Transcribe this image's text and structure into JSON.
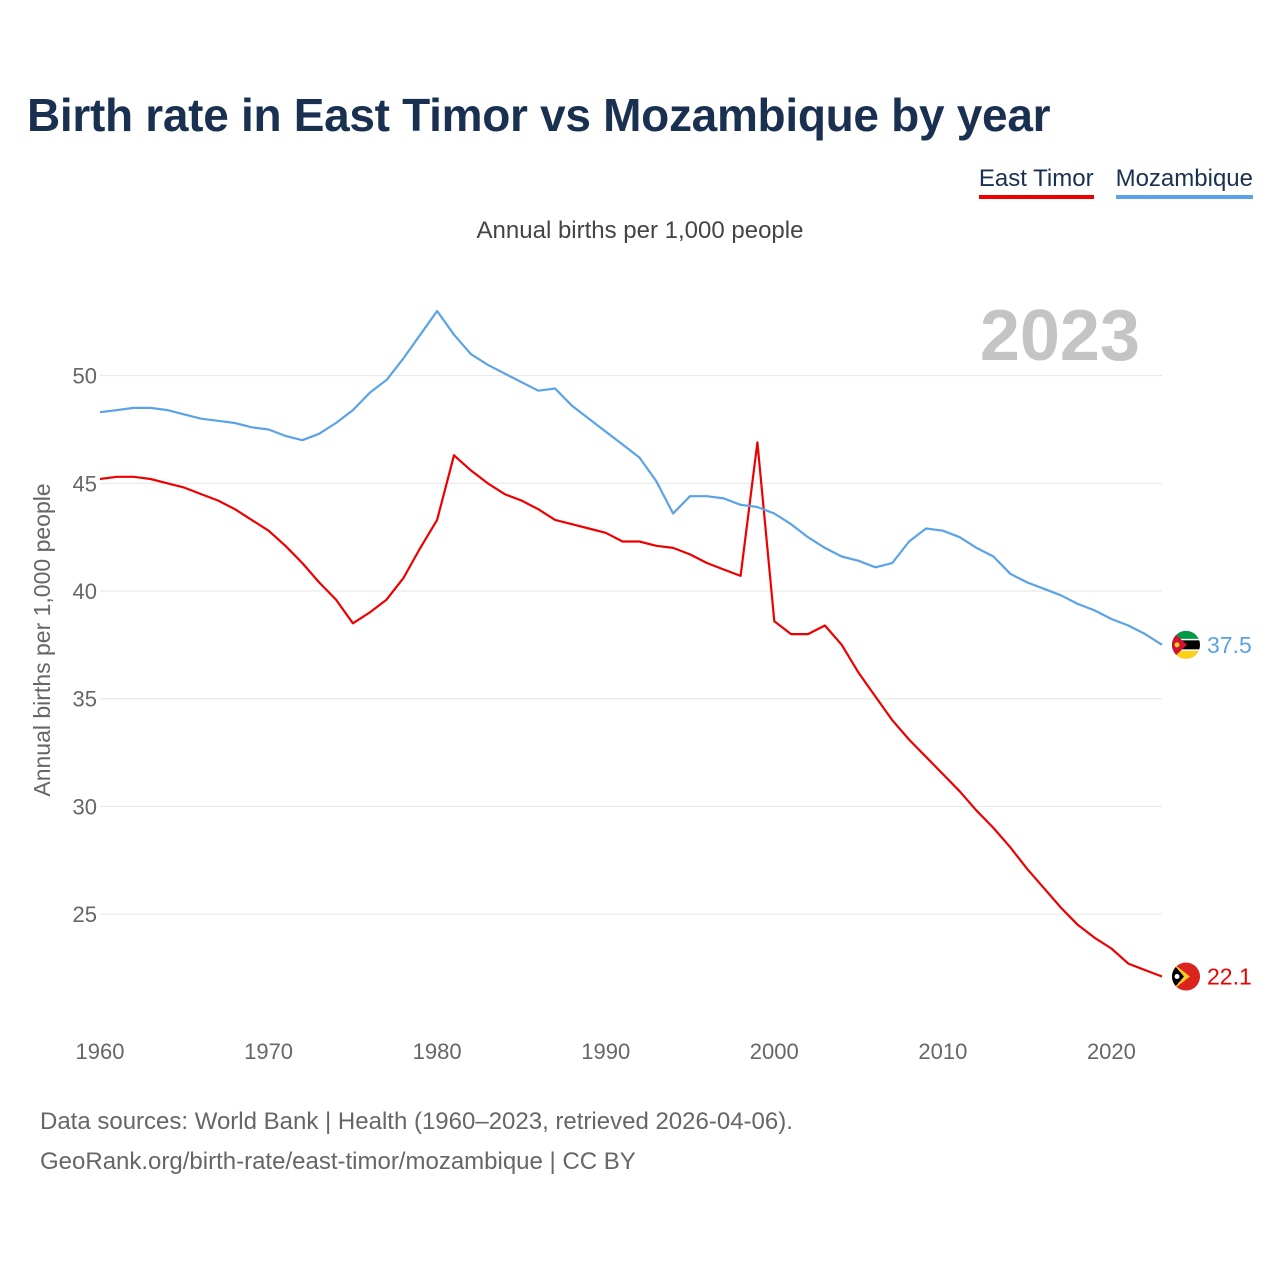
{
  "title": "Birth rate in East Timor vs Mozambique by year",
  "subtitle": "Annual births per 1,000 people",
  "legend": [
    "East Timor",
    "Mozambique"
  ],
  "year_watermark": "2023",
  "footer": {
    "line1": "Data sources: World Bank | Health (1960–2023, retrieved 2026-04-06).",
    "line2": "GeoRank.org/birth-rate/east-timor/mozambique | CC BY"
  },
  "chart_data": {
    "type": "line",
    "title": "Birth rate in East Timor vs Mozambique by year",
    "xlabel": "",
    "ylabel": "Annual births per 1,000 people",
    "xlim": [
      1960,
      2023
    ],
    "ylim": [
      20.5,
      53
    ],
    "yticks": [
      25,
      30,
      35,
      40,
      45,
      50
    ],
    "xticks": [
      1960,
      1970,
      1980,
      1990,
      2000,
      2010,
      2020
    ],
    "grid": true,
    "x": [
      1960,
      1961,
      1962,
      1963,
      1964,
      1965,
      1966,
      1967,
      1968,
      1969,
      1970,
      1971,
      1972,
      1973,
      1974,
      1975,
      1976,
      1977,
      1978,
      1979,
      1980,
      1981,
      1982,
      1983,
      1984,
      1985,
      1986,
      1987,
      1988,
      1989,
      1990,
      1991,
      1992,
      1993,
      1994,
      1995,
      1996,
      1997,
      1998,
      1999,
      2000,
      2001,
      2002,
      2003,
      2004,
      2005,
      2006,
      2007,
      2008,
      2009,
      2010,
      2011,
      2012,
      2013,
      2014,
      2015,
      2016,
      2017,
      2018,
      2019,
      2020,
      2021,
      2022,
      2023
    ],
    "series": [
      {
        "name": "East Timor",
        "color": "#ee0000",
        "end_label": "22.1",
        "values": [
          45.2,
          45.3,
          45.3,
          45.2,
          45.0,
          44.8,
          44.5,
          44.2,
          43.8,
          43.3,
          42.8,
          42.1,
          41.3,
          40.4,
          39.6,
          38.5,
          39.0,
          39.6,
          40.6,
          42.0,
          43.3,
          46.3,
          45.6,
          45.0,
          44.5,
          44.2,
          43.8,
          43.3,
          43.1,
          42.9,
          42.7,
          42.3,
          42.3,
          42.1,
          42.0,
          41.7,
          41.3,
          41.0,
          40.7,
          46.9,
          38.6,
          38.0,
          38.0,
          38.4,
          37.5,
          36.2,
          35.1,
          34.0,
          33.1,
          32.3,
          31.5,
          30.7,
          29.8,
          29.0,
          28.1,
          27.1,
          26.2,
          25.3,
          24.5,
          23.9,
          23.4,
          22.7,
          22.4,
          22.1
        ]
      },
      {
        "name": "Mozambique",
        "color": "#5ba3e6",
        "end_label": "37.5",
        "values": [
          48.3,
          48.4,
          48.5,
          48.5,
          48.4,
          48.2,
          48.0,
          47.9,
          47.8,
          47.6,
          47.5,
          47.2,
          47.0,
          47.3,
          47.8,
          48.4,
          49.2,
          49.8,
          50.8,
          51.9,
          53.0,
          51.9,
          51.0,
          50.5,
          50.1,
          49.7,
          49.3,
          49.4,
          48.6,
          48.0,
          47.4,
          46.8,
          46.2,
          45.1,
          43.6,
          44.4,
          44.4,
          44.3,
          44.0,
          43.9,
          43.6,
          43.1,
          42.5,
          42.0,
          41.6,
          41.4,
          41.1,
          41.3,
          42.3,
          42.9,
          42.8,
          42.5,
          42.0,
          41.6,
          40.8,
          40.4,
          40.1,
          39.8,
          39.4,
          39.1,
          38.7,
          38.4,
          38.0,
          37.5
        ]
      }
    ]
  }
}
